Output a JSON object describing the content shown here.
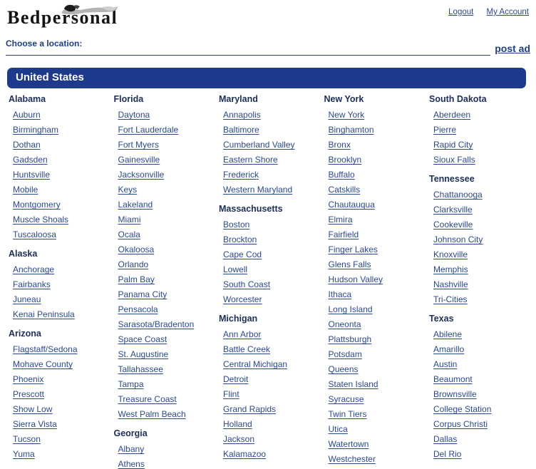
{
  "brand": {
    "logo_text": "Bedpersonal"
  },
  "account_nav": {
    "logout_label": "Logout",
    "my_account_label": "My Account"
  },
  "location_bar": {
    "label": "Choose a location:",
    "post_ad_label": "post ad"
  },
  "region_header": {
    "title": "United States"
  },
  "icons": {
    "logo_figure": "reclining-figure-icon"
  },
  "colors": {
    "accent_bar": "#1e3a8d",
    "link": "#2a4a8f",
    "state_header": "#1c2e5a"
  },
  "columns": [
    {
      "states": [
        {
          "name": "Alabama",
          "cities": [
            "Auburn",
            "Birmingham",
            "Dothan",
            "Gadsden",
            "Huntsville",
            "Mobile",
            "Montgomery",
            "Muscle Shoals",
            "Tuscaloosa"
          ]
        },
        {
          "name": "Alaska",
          "cities": [
            "Anchorage",
            "Fairbanks",
            "Juneau",
            "Kenai Peninsula"
          ]
        },
        {
          "name": "Arizona",
          "cities": [
            "Flagstaff/Sedona",
            "Mohave County",
            "Phoenix",
            "Prescott",
            "Show Low",
            "Sierra Vista",
            "Tucson",
            "Yuma"
          ]
        }
      ]
    },
    {
      "states": [
        {
          "name": "Florida",
          "cities": [
            "Daytona",
            "Fort Lauderdale",
            "Fort Myers",
            "Gainesville",
            "Jacksonville",
            "Keys",
            "Lakeland",
            "Miami",
            "Ocala",
            "Okaloosa",
            "Orlando",
            "Palm Bay",
            "Panama City",
            "Pensacola",
            "Sarasota/Bradenton",
            "Space Coast",
            "St. Augustine",
            "Tallahassee",
            "Tampa",
            "Treasure Coast",
            "West Palm Beach"
          ]
        },
        {
          "name": "Georgia",
          "cities": [
            "Albany",
            "Athens"
          ]
        }
      ]
    },
    {
      "states": [
        {
          "name": "Maryland",
          "cities": [
            "Annapolis",
            "Baltimore",
            "Cumberland Valley",
            "Eastern Shore",
            "Frederick",
            "Western Maryland"
          ]
        },
        {
          "name": "Massachusetts",
          "cities": [
            "Boston",
            "Brockton",
            "Cape Cod",
            "Lowell",
            "South Coast",
            "Worcester"
          ]
        },
        {
          "name": "Michigan",
          "cities": [
            "Ann Arbor",
            "Battle Creek",
            "Central Michigan",
            "Detroit",
            "Flint",
            "Grand Rapids",
            "Holland",
            "Jackson",
            "Kalamazoo"
          ]
        }
      ]
    },
    {
      "states": [
        {
          "name": "New York",
          "cities": [
            "New York",
            "Binghamton",
            "Bronx",
            "Brooklyn",
            "Buffalo",
            "Catskills",
            "Chautauqua",
            "Elmira",
            "Fairfield",
            "Finger Lakes",
            "Glens Falls",
            "Hudson Valley",
            "Ithaca",
            "Long Island",
            "Oneonta",
            "Plattsburgh",
            "Potsdam",
            "Queens",
            "Staten Island",
            "Syracuse",
            "Twin Tiers",
            "Utica",
            "Watertown",
            "Westchester"
          ]
        }
      ]
    },
    {
      "states": [
        {
          "name": "South Dakota",
          "cities": [
            "Aberdeen",
            "Pierre",
            "Rapid City",
            "Sioux Falls"
          ]
        },
        {
          "name": "Tennessee",
          "cities": [
            "Chattanooga",
            "Clarksville",
            "Cookeville",
            "Johnson City",
            "Knoxville",
            "Memphis",
            "Nashville",
            "Tri-Cities"
          ]
        },
        {
          "name": "Texas",
          "cities": [
            "Abilene",
            "Amarillo",
            "Austin",
            "Beaumont",
            "Brownsville",
            "College Station",
            "Corpus Christi",
            "Dallas",
            "Del Rio"
          ]
        }
      ]
    }
  ]
}
